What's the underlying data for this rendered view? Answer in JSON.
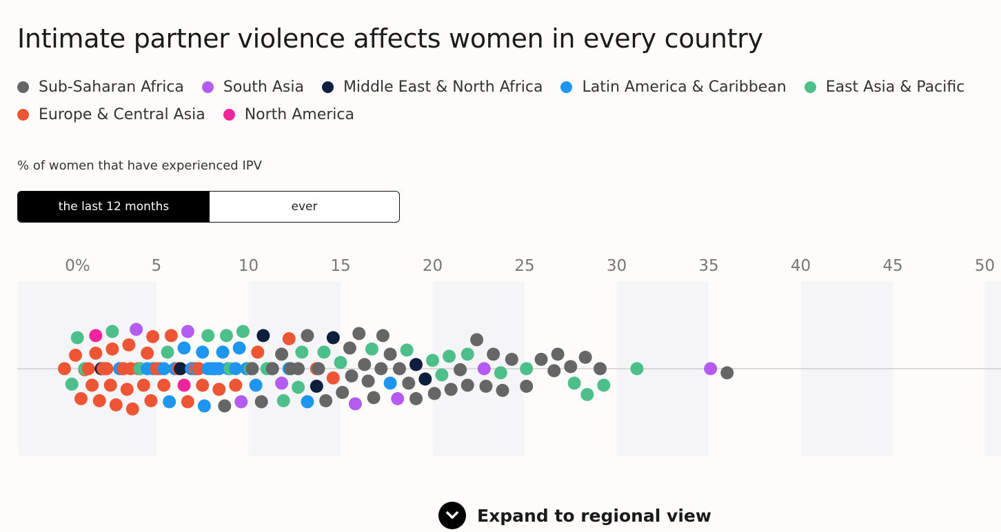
{
  "title": "Intimate partner violence affects women in every country",
  "legend": [
    {
      "label": "Sub-Saharan Africa",
      "key": "ssa",
      "color": "#666666"
    },
    {
      "label": "South Asia",
      "key": "sa",
      "color": "#b45cf2"
    },
    {
      "label": "Middle East & North Africa",
      "key": "mena",
      "color": "#0d1f3c"
    },
    {
      "label": "Latin America & Caribbean",
      "key": "lac",
      "color": "#1e96f0"
    },
    {
      "label": "East Asia & Pacific",
      "key": "eap",
      "color": "#4cbf8b"
    },
    {
      "label": "Europe & Central Asia",
      "key": "eca",
      "color": "#ee5535"
    },
    {
      "label": "North America",
      "key": "na",
      "color": "#f0249c"
    }
  ],
  "subtitle": "% of women that have experienced IPV",
  "toggle": {
    "selected": "the last 12 months",
    "other": "ever"
  },
  "expand_label": "Expand to regional view",
  "chart_data": {
    "type": "scatter",
    "subtype": "beeswarm",
    "xlabel": "% of women that have experienced IPV",
    "xlim": [
      -2.5,
      51
    ],
    "ticks": [
      0,
      5,
      10,
      15,
      20,
      25,
      30,
      35,
      40,
      45,
      50
    ],
    "tick_labels": [
      "0%",
      "5",
      "10",
      "15",
      "20",
      "25",
      "30",
      "35",
      "40",
      "45",
      "50"
    ],
    "shaded_bands": [
      [
        -2.5,
        5
      ],
      [
        10,
        15
      ],
      [
        20,
        25
      ],
      [
        30,
        35
      ],
      [
        40,
        45
      ],
      [
        50,
        51
      ]
    ],
    "series": [
      {
        "name": "Europe & Central Asia",
        "key": "eca",
        "values": [
          1.7,
          3.5,
          1.3,
          2.2,
          3.2,
          5.0,
          0.0,
          0.9,
          1.9,
          2.8,
          3.7,
          4.7,
          6.2,
          7.1,
          0.6,
          1.5,
          2.5,
          3.4,
          4.3,
          5.2,
          6.2,
          7.1,
          1.1,
          2.1,
          3.0,
          4.0,
          4.8,
          5.8,
          6.7,
          7.3,
          2.6,
          3.6,
          4.5,
          5.4,
          6.3,
          6.9,
          2.3,
          3.2,
          4.1,
          5.1,
          6.0,
          7.5,
          8.4,
          9.3,
          10.5,
          12.2,
          13.7,
          14.6
        ]
      },
      {
        "name": "North America",
        "key": "na",
        "values": [
          1.7,
          6.5
        ]
      },
      {
        "name": "East Asia & Pacific",
        "key": "eap",
        "values": [
          1.1,
          0.7,
          2.6,
          0.4,
          4.1,
          5.6,
          9.0,
          10.1,
          11.0,
          11.9,
          12.7,
          7.8,
          8.8,
          9.7,
          11.2,
          12.9,
          14.1,
          15.0,
          16.7,
          18.6,
          20.5,
          20.0,
          20.9,
          21.9,
          23.7,
          25.1,
          27.7,
          28.4,
          29.3,
          31.1
        ]
      },
      {
        "name": "Latin America & Caribbean",
        "key": "lac",
        "values": [
          3.0,
          4.8,
          5.7,
          7.2,
          8.1,
          4.5,
          5.4,
          6.0,
          6.9,
          7.8,
          6.5,
          7.5,
          8.4,
          9.3,
          8.0,
          8.9,
          9.9,
          7.6,
          8.6,
          9.5,
          10.4,
          11.3,
          12.2,
          8.2,
          13.2,
          17.7
        ]
      },
      {
        "name": "Middle East & North Africa",
        "key": "mena",
        "values": [
          2.0,
          6.3,
          10.2,
          10.8,
          13.7,
          14.6,
          19.6,
          19.1
        ]
      },
      {
        "name": "South Asia",
        "key": "sa",
        "values": [
          3.9,
          6.7,
          9.6,
          11.8,
          18.1,
          15.8,
          22.8,
          35.1
        ]
      },
      {
        "name": "Sub-Saharan Africa",
        "key": "ssa",
        "values": [
          10.2,
          8.7,
          10.7,
          11.8,
          11.3,
          12.3,
          12.7,
          13.8,
          13.2,
          14.2,
          15.1,
          16.0,
          15.6,
          16.5,
          15.5,
          16.8,
          17.3,
          17.7,
          18.2,
          18.7,
          19.1,
          20.1,
          21.0,
          21.9,
          22.9,
          23.8,
          21.5,
          22.4,
          23.3,
          24.3,
          16.3,
          17.2,
          25.1,
          25.9,
          26.6,
          26.8,
          27.5,
          28.3,
          29.1,
          36.0
        ]
      }
    ]
  }
}
